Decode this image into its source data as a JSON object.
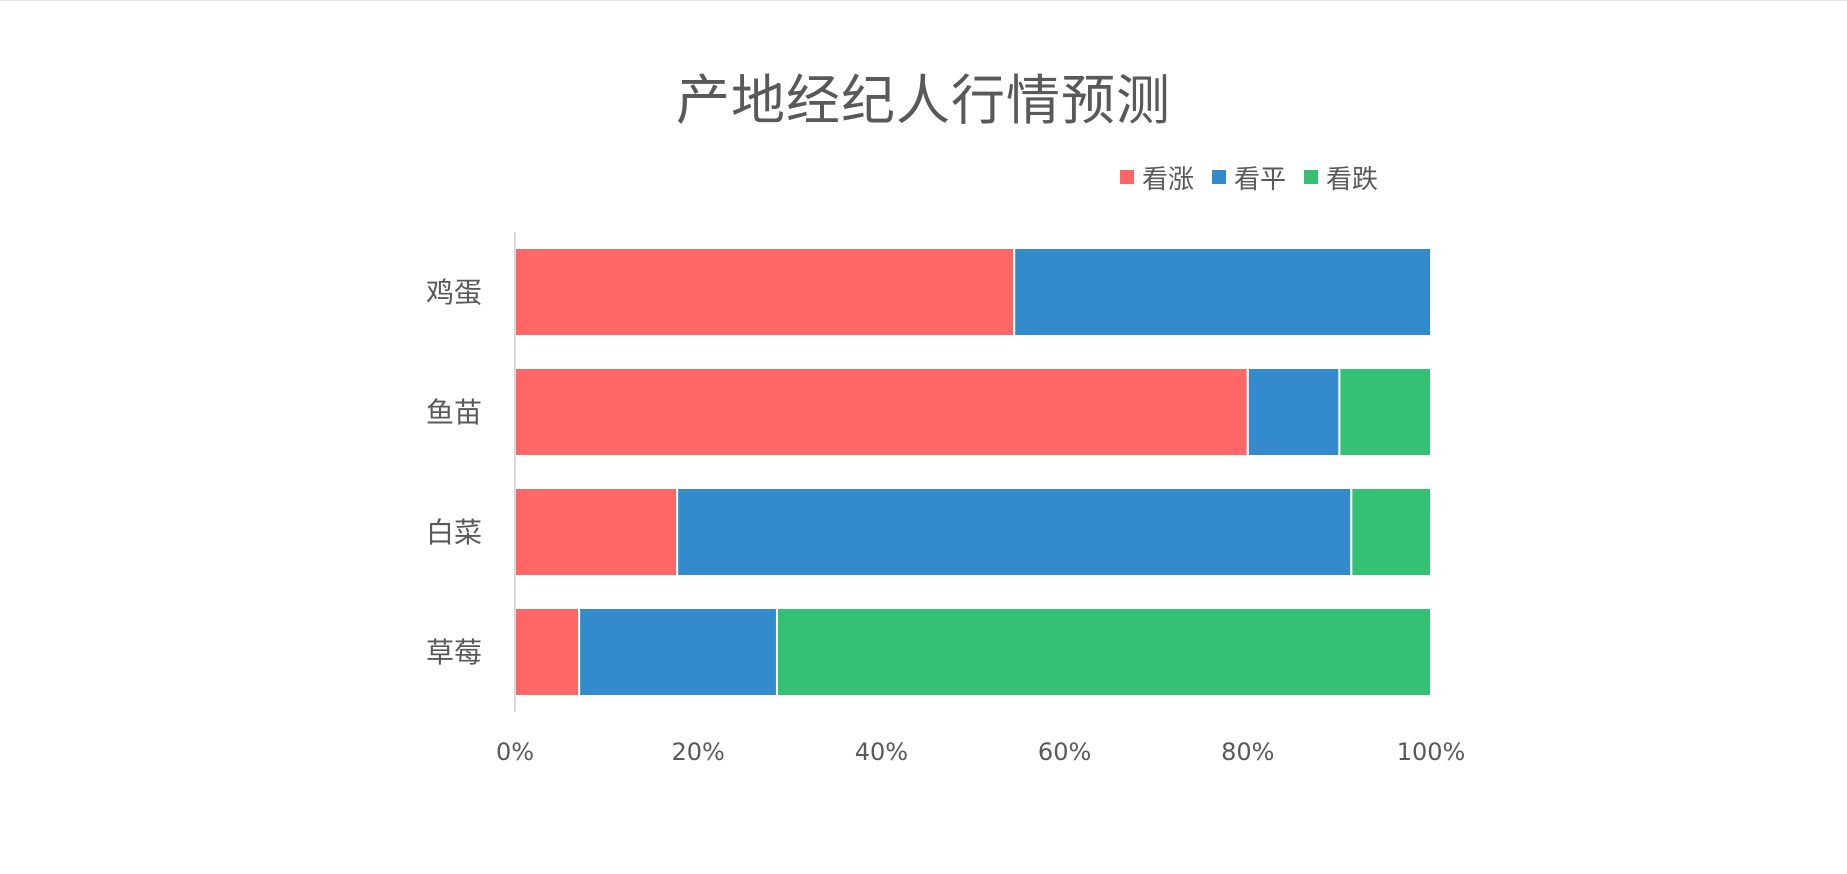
{
  "chart_data": {
    "type": "bar",
    "orientation": "horizontal",
    "stacked": "percent",
    "title": "产地经纪人行情预测",
    "categories": [
      "鸡蛋",
      "鱼苗",
      "白菜",
      "草莓"
    ],
    "series": [
      {
        "name": "看涨",
        "color": "#ff6666",
        "values": [
          54.5,
          80,
          17.7,
          7
        ]
      },
      {
        "name": "看平",
        "color": "#348bcc",
        "values": [
          45.5,
          10,
          73.6,
          21.6
        ]
      },
      {
        "name": "看跌",
        "color": "#34c173",
        "values": [
          0,
          10,
          8.7,
          71.4
        ]
      }
    ],
    "xlim": [
      0,
      100
    ],
    "xticks": [
      "0%",
      "20%",
      "40%",
      "60%",
      "80%",
      "100%"
    ],
    "legend_position": "top-right",
    "grid": false
  }
}
